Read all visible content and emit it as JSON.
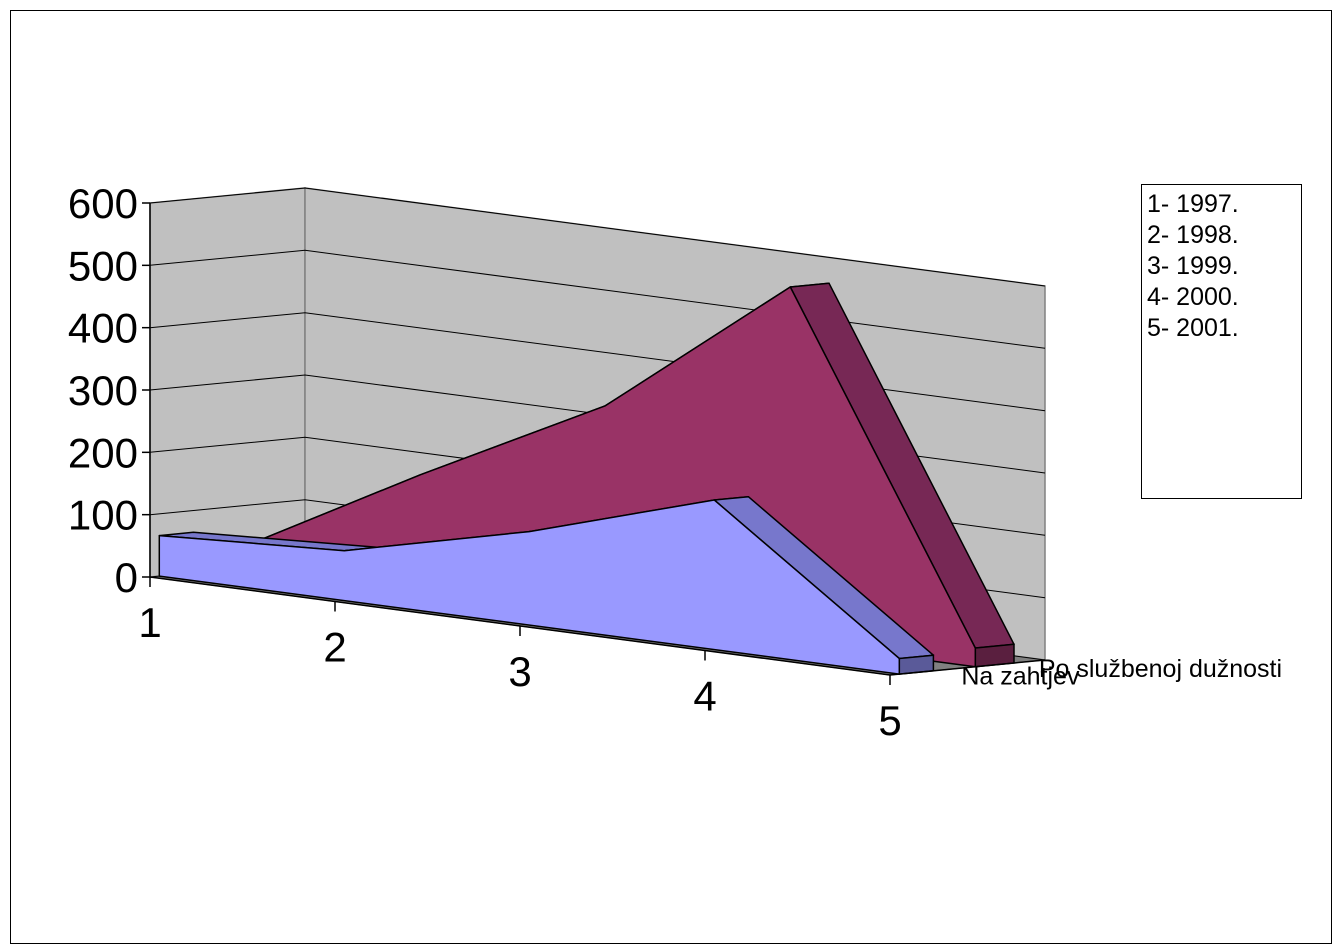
{
  "chart_data": {
    "type": "area",
    "view": "3d",
    "categories": [
      "1",
      "2",
      "3",
      "4",
      "5"
    ],
    "series": [
      {
        "name": "Na zahtjev",
        "values": [
          65,
          80,
          150,
          240,
          25
        ],
        "color": "#9999ff"
      },
      {
        "name": "Po službenoj dužnosti",
        "values": [
          30,
          190,
          340,
          570,
          30
        ],
        "color": "#993366"
      }
    ],
    "y_ticks": [
      "0",
      "100",
      "200",
      "300",
      "400",
      "500",
      "600"
    ],
    "ylim": [
      0,
      600
    ],
    "grid": true,
    "legend": {
      "placement": "right",
      "entries": [
        "1- 1997.",
        "2- 1998.",
        "3- 1999.",
        "4- 2000.",
        "5- 2001."
      ]
    }
  }
}
